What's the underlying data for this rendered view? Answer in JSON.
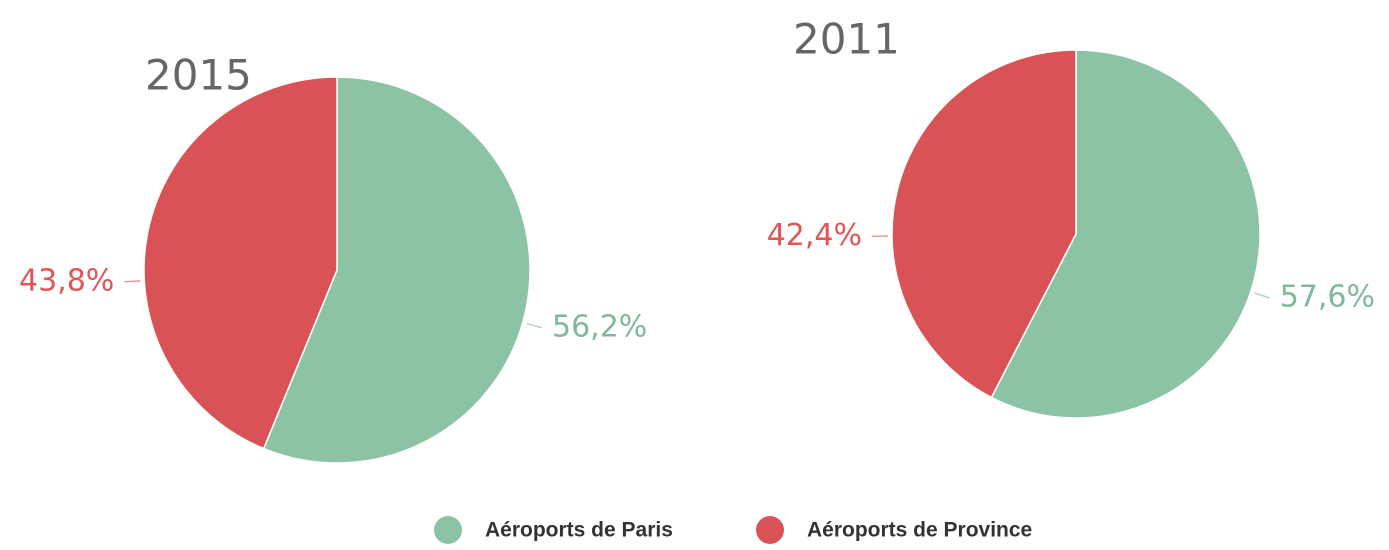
{
  "chart_data": [
    {
      "type": "pie",
      "title": "2015",
      "categories": [
        "Aéroports de Paris",
        "Aéroports de Province"
      ],
      "values": [
        56.2,
        43.8
      ],
      "value_labels": [
        "56,2%",
        "43,8%"
      ],
      "colors": [
        "#8dc3a5",
        "#d95356"
      ],
      "label_colors": [
        "#7fb89a",
        "#e05555"
      ]
    },
    {
      "type": "pie",
      "title": "2011",
      "categories": [
        "Aéroports de Paris",
        "Aéroports de Province"
      ],
      "values": [
        57.6,
        42.4
      ],
      "value_labels": [
        "57,6%",
        "42,4%"
      ],
      "colors": [
        "#8dc3a5",
        "#d95356"
      ],
      "label_colors": [
        "#7fb89a",
        "#e05555"
      ]
    }
  ]
}
